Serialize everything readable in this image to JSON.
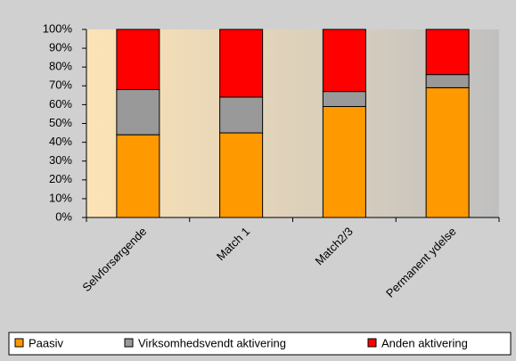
{
  "chart_data": {
    "type": "stacked_bar",
    "categories": [
      "Selvforsørgende",
      "Match 1",
      "Match2/3",
      "Permanent ydelse"
    ],
    "series": [
      {
        "name": "Paasiv",
        "color": "#ff9900",
        "values": [
          44,
          45,
          59,
          69
        ]
      },
      {
        "name": "Virksomhedsvendt aktivering",
        "color": "#999999",
        "values": [
          24,
          19,
          8,
          7
        ]
      },
      {
        "name": "Anden aktivering",
        "color": "#ff0000",
        "values": [
          32,
          36,
          33,
          24
        ]
      }
    ],
    "ylim": [
      0,
      100
    ],
    "yticks": [
      {
        "value": 0,
        "label": "0%"
      },
      {
        "value": 10,
        "label": "10%"
      },
      {
        "value": 20,
        "label": "20%"
      },
      {
        "value": 30,
        "label": "30%"
      },
      {
        "value": 40,
        "label": "40%"
      },
      {
        "value": 50,
        "label": "50%"
      },
      {
        "value": 60,
        "label": "60%"
      },
      {
        "value": 70,
        "label": "70%"
      },
      {
        "value": 80,
        "label": "80%"
      },
      {
        "value": 90,
        "label": "90%"
      },
      {
        "value": 100,
        "label": "100%"
      }
    ],
    "legend": "bottom"
  }
}
